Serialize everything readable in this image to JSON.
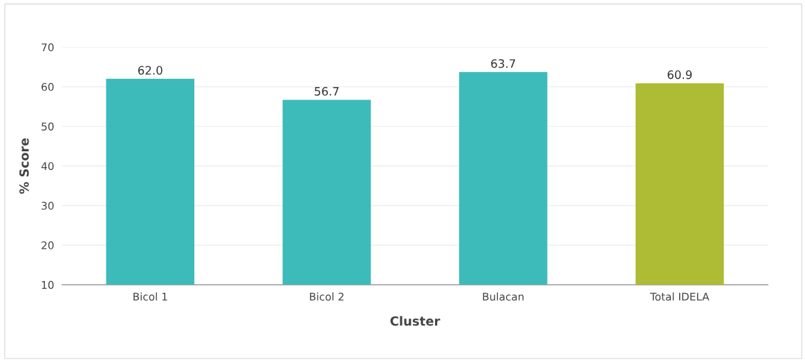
{
  "chart_data": {
    "type": "bar",
    "xlabel": "Cluster",
    "ylabel": "% Score",
    "categories": [
      "Bicol 1",
      "Bicol 2",
      "Bulacan",
      "Total IDELA"
    ],
    "values": [
      62.0,
      56.7,
      63.7,
      60.9
    ],
    "colors": [
      "#3dbbbb",
      "#3dbbbb",
      "#3dbbbb",
      "#adbb35"
    ],
    "value_labels": [
      "62.0",
      "56.7",
      "63.7",
      "60.9"
    ],
    "ylim": [
      10,
      70
    ],
    "yticks": [
      10,
      20,
      30,
      40,
      50,
      60,
      70
    ],
    "grid": "y",
    "legend": false
  }
}
